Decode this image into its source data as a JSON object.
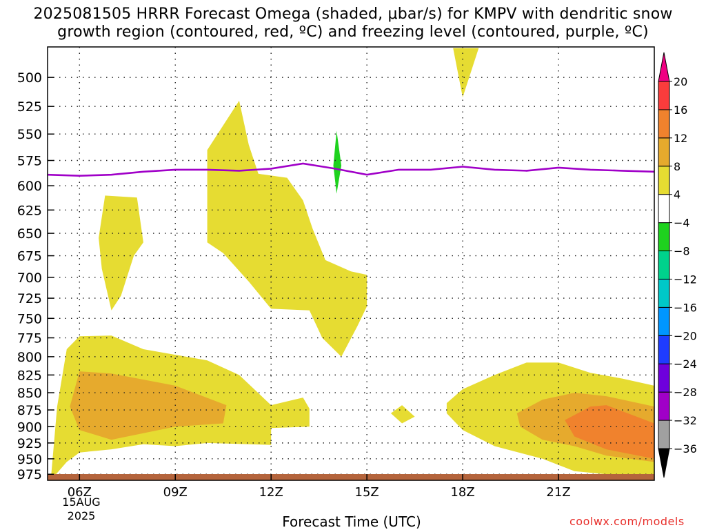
{
  "title": {
    "line1": "2025081505 HRRR Forecast Omega (shaded, μbar/s) for KMPV with dendritic snow",
    "line2": "growth region (contoured, red, ºC) and freezing level (contoured, purple, ºC)"
  },
  "xlabel": "Forecast Time (UTC)",
  "credit": "coolwx.com/models",
  "date_sub": {
    "day": "15AUG",
    "year": "2025"
  },
  "colors": {
    "omega_4_8": "#e6dc32",
    "omega_8_12": "#e6aa2d",
    "omega_12_16": "#f0822d",
    "omega_neg4_neg8": "#1ed21e",
    "freezing_level": "#a000c8",
    "ground": "#b4643c"
  },
  "chart_data": {
    "type": "heatmap",
    "title": "2025081505 HRRR Forecast Omega (shaded, μbar/s) for KMPV with dendritic snow growth region (contoured, red, ºC) and freezing level (contoured, purple, ºC)",
    "xlabel": "Forecast Time (UTC)",
    "ylabel": "",
    "x_ticks": [
      "06Z",
      "09Z",
      "12Z",
      "15Z",
      "18Z",
      "21Z"
    ],
    "x_hours": [
      6,
      9,
      12,
      15,
      18,
      21
    ],
    "xlim": [
      5,
      24
    ],
    "y_ticks": [
      500,
      525,
      550,
      575,
      600,
      625,
      650,
      675,
      700,
      725,
      750,
      775,
      800,
      825,
      850,
      875,
      900,
      925,
      950,
      975
    ],
    "ylim": [
      475,
      985
    ],
    "y_scale": "log-pressure",
    "grid": true,
    "colorbar": {
      "levels": [
        -36,
        -32,
        -28,
        -24,
        -20,
        -16,
        -12,
        -8,
        -4,
        4,
        8,
        12,
        16,
        20
      ],
      "colors": [
        "#000000",
        "#a0a0a0",
        "#a000c8",
        "#6e00dc",
        "#1e3cff",
        "#0096ff",
        "#00c8c8",
        "#00d28c",
        "#1ed21e",
        "#ffffff",
        "#e6dc32",
        "#e6aa2d",
        "#f0822d",
        "#fa3c3c",
        "#f00082"
      ],
      "labels": [
        "20",
        "16",
        "12",
        "8",
        "4",
        "−4",
        "−8",
        "−12",
        "−16",
        "−20",
        "−24",
        "−28",
        "−32",
        "−36"
      ]
    },
    "freezing_level": {
      "name": "freezing level",
      "x": [
        5,
        6,
        7,
        8,
        9,
        10,
        11,
        12,
        13,
        14,
        15,
        16,
        17,
        18,
        19,
        20,
        21,
        22,
        23,
        24
      ],
      "y": [
        589,
        590,
        589,
        586,
        584,
        584,
        585,
        583,
        578,
        583,
        589,
        584,
        584,
        581,
        584,
        585,
        582,
        584,
        585,
        586
      ]
    },
    "omega_regions": [
      {
        "level": "4-8",
        "points": [
          [
            5.1,
            985
          ],
          [
            5.3,
            870
          ],
          [
            5.6,
            790
          ],
          [
            6,
            773
          ],
          [
            7,
            772
          ],
          [
            8,
            790
          ],
          [
            10,
            805
          ],
          [
            11,
            825
          ],
          [
            12,
            868
          ],
          [
            13,
            857
          ],
          [
            13.2,
            873
          ],
          [
            13.2,
            900
          ],
          [
            12,
            902
          ],
          [
            12,
            928
          ],
          [
            10,
            925
          ],
          [
            9,
            930
          ],
          [
            8,
            927
          ],
          [
            7,
            935
          ],
          [
            6,
            940
          ],
          [
            5.6,
            955
          ],
          [
            5.1,
            985
          ]
        ]
      },
      {
        "level": "8-12",
        "points": [
          [
            5.7,
            870
          ],
          [
            6,
            820
          ],
          [
            7,
            823
          ],
          [
            9,
            840
          ],
          [
            10.6,
            868
          ],
          [
            10.5,
            895
          ],
          [
            9,
            900
          ],
          [
            7,
            920
          ],
          [
            6,
            905
          ],
          [
            5.7,
            870
          ]
        ]
      },
      {
        "level": "4-8",
        "points": [
          [
            6.6,
            655
          ],
          [
            6.8,
            610
          ],
          [
            7.8,
            612
          ],
          [
            8,
            660
          ],
          [
            7.7,
            675
          ],
          [
            7.3,
            722
          ],
          [
            7.0,
            740
          ],
          [
            6.7,
            690
          ],
          [
            6.6,
            655
          ]
        ]
      },
      {
        "level": "4-8",
        "points": [
          [
            10,
            565
          ],
          [
            11,
            520
          ],
          [
            11.3,
            560
          ],
          [
            11.6,
            588
          ],
          [
            12.5,
            592
          ],
          [
            13,
            615
          ],
          [
            13.3,
            645
          ],
          [
            13.7,
            680
          ],
          [
            14.5,
            693
          ],
          [
            15,
            697
          ],
          [
            15,
            735
          ],
          [
            14.7,
            760
          ],
          [
            14.2,
            800
          ],
          [
            13.6,
            775
          ],
          [
            13.2,
            740
          ],
          [
            12,
            738
          ],
          [
            11.3,
            705
          ],
          [
            10.5,
            672
          ],
          [
            10,
            660
          ],
          [
            10,
            565
          ]
        ]
      },
      {
        "level": "neg4-neg8",
        "points": [
          [
            13.95,
            580
          ],
          [
            14.05,
            547
          ],
          [
            14.2,
            580
          ],
          [
            14.05,
            608
          ],
          [
            13.95,
            580
          ]
        ]
      },
      {
        "level": "4-8",
        "points": [
          [
            17.7,
            476
          ],
          [
            18.5,
            476
          ],
          [
            18.0,
            517
          ],
          [
            17.7,
            476
          ]
        ]
      },
      {
        "level": "4-8",
        "points": [
          [
            15.75,
            880
          ],
          [
            16.1,
            868
          ],
          [
            16.5,
            885
          ],
          [
            16.1,
            895
          ],
          [
            15.75,
            880
          ]
        ]
      },
      {
        "level": "4-8",
        "points": [
          [
            17.5,
            865
          ],
          [
            18,
            845
          ],
          [
            19,
            825
          ],
          [
            20,
            808
          ],
          [
            21,
            808
          ],
          [
            22,
            822
          ],
          [
            23,
            830
          ],
          [
            24,
            840
          ],
          [
            24,
            983
          ],
          [
            22.5,
            975
          ],
          [
            21.5,
            970
          ],
          [
            20.5,
            950
          ],
          [
            19,
            930
          ],
          [
            18,
            905
          ],
          [
            17.5,
            880
          ],
          [
            17.5,
            865
          ]
        ]
      },
      {
        "level": "8-12",
        "points": [
          [
            19.7,
            880
          ],
          [
            20.5,
            860
          ],
          [
            21.5,
            850
          ],
          [
            22.5,
            855
          ],
          [
            24,
            870
          ],
          [
            24,
            955
          ],
          [
            22.5,
            945
          ],
          [
            21.5,
            930
          ],
          [
            20.5,
            920
          ],
          [
            19.8,
            900
          ],
          [
            19.7,
            880
          ]
        ]
      },
      {
        "level": "12-16",
        "points": [
          [
            21.2,
            890
          ],
          [
            22,
            870
          ],
          [
            22.5,
            868
          ],
          [
            24,
            895
          ],
          [
            24,
            950
          ],
          [
            22.5,
            935
          ],
          [
            21.5,
            915
          ],
          [
            21.2,
            890
          ]
        ]
      }
    ]
  }
}
